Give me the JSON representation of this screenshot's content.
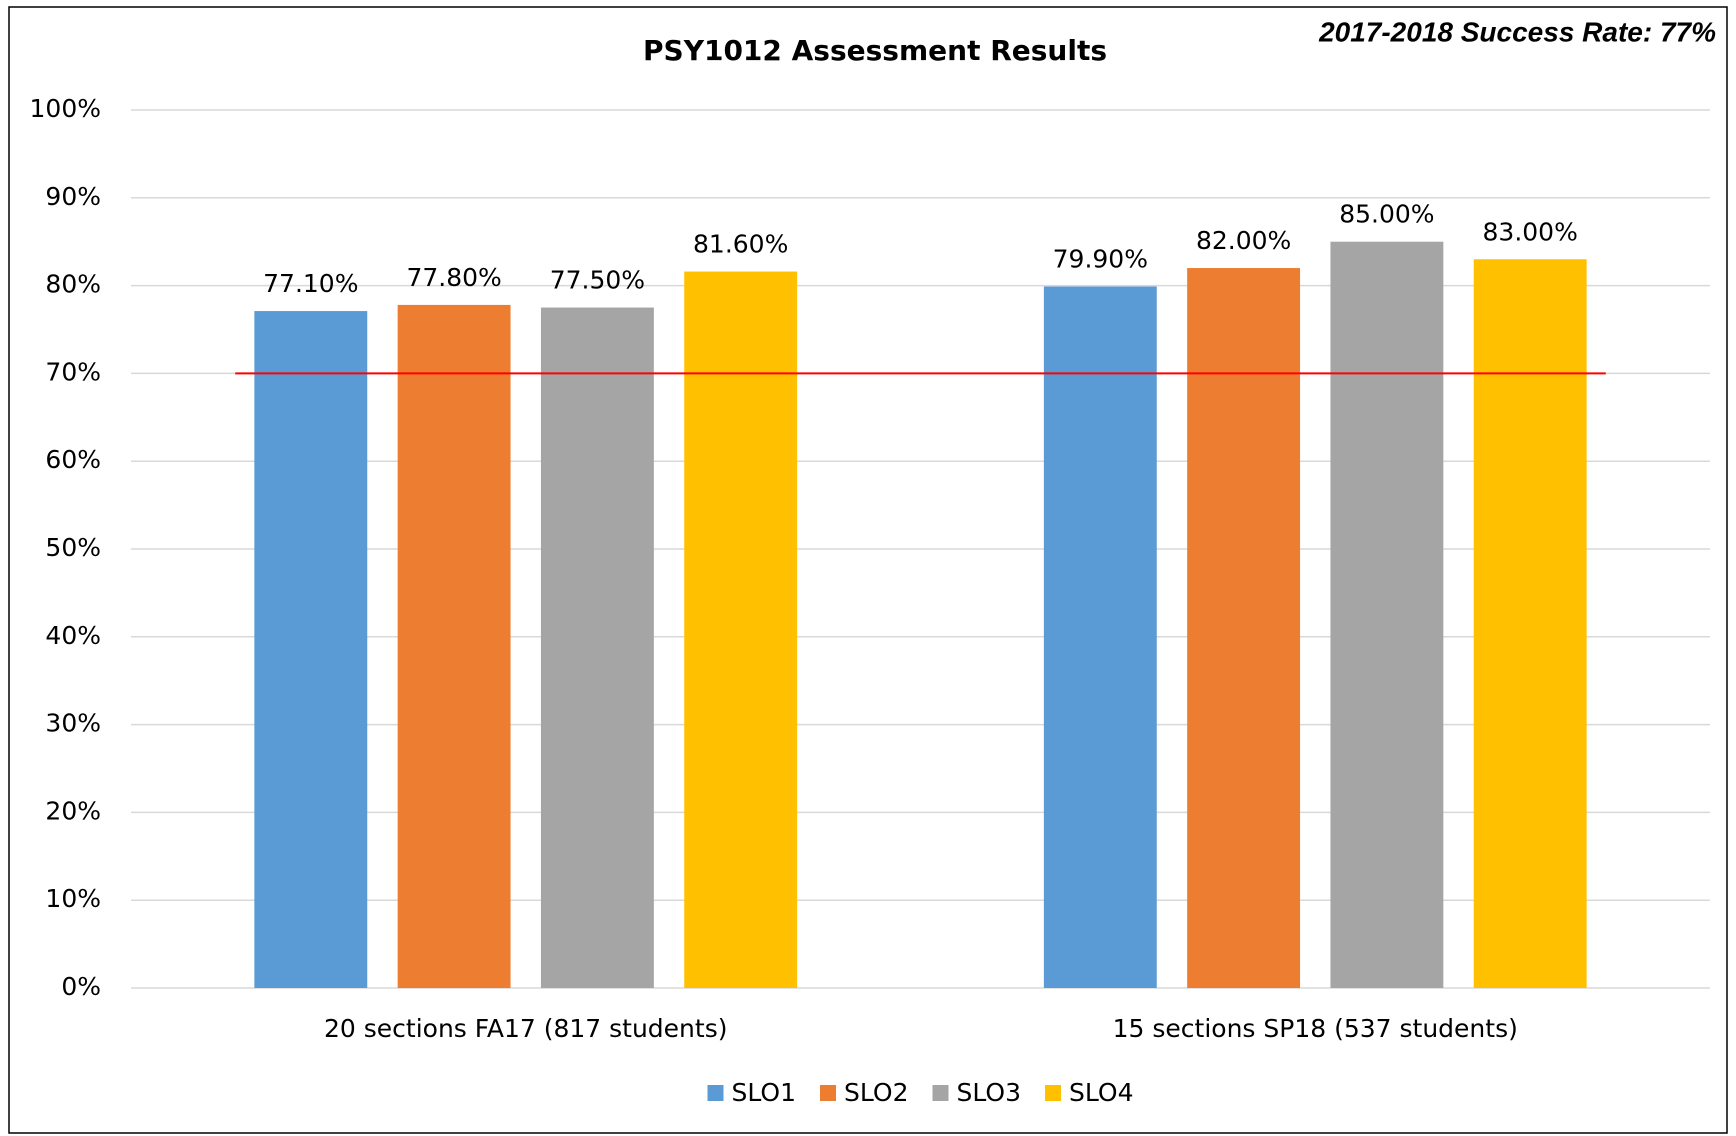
{
  "chart_data": {
    "type": "bar",
    "title": "PSY1012 Assessment Results",
    "annotation": "2017-2018 Success Rate: 77%",
    "categories": [
      "20 sections FA17 (817 students)",
      "15 sections SP18 (537 students)"
    ],
    "series": [
      {
        "name": "SLO1",
        "color": "#5b9bd5",
        "values": [
          77.1,
          79.9
        ],
        "value_labels": [
          "77.10%",
          "79.90%"
        ]
      },
      {
        "name": "SLO2",
        "color": "#ed7d31",
        "values": [
          77.8,
          82.0
        ],
        "value_labels": [
          "77.80%",
          "82.00%"
        ]
      },
      {
        "name": "SLO3",
        "color": "#a5a5a5",
        "values": [
          77.5,
          85.0
        ],
        "value_labels": [
          "77.50%",
          "85.00%"
        ]
      },
      {
        "name": "SLO4",
        "color": "#ffc000",
        "values": [
          81.6,
          83.0
        ],
        "value_labels": [
          "81.60%",
          "83.00%"
        ]
      }
    ],
    "reference_line": {
      "value": 70,
      "color": "#ff0000"
    },
    "ylim": [
      0,
      100
    ],
    "yticks": [
      {
        "value": 0,
        "label": "0%"
      },
      {
        "value": 10,
        "label": "10%"
      },
      {
        "value": 20,
        "label": "20%"
      },
      {
        "value": 30,
        "label": "30%"
      },
      {
        "value": 40,
        "label": "40%"
      },
      {
        "value": 50,
        "label": "50%"
      },
      {
        "value": 60,
        "label": "60%"
      },
      {
        "value": 70,
        "label": "70%"
      },
      {
        "value": 80,
        "label": "80%"
      },
      {
        "value": 90,
        "label": "90%"
      },
      {
        "value": 100,
        "label": "100%"
      }
    ],
    "grid": true,
    "legend": "bottom"
  }
}
